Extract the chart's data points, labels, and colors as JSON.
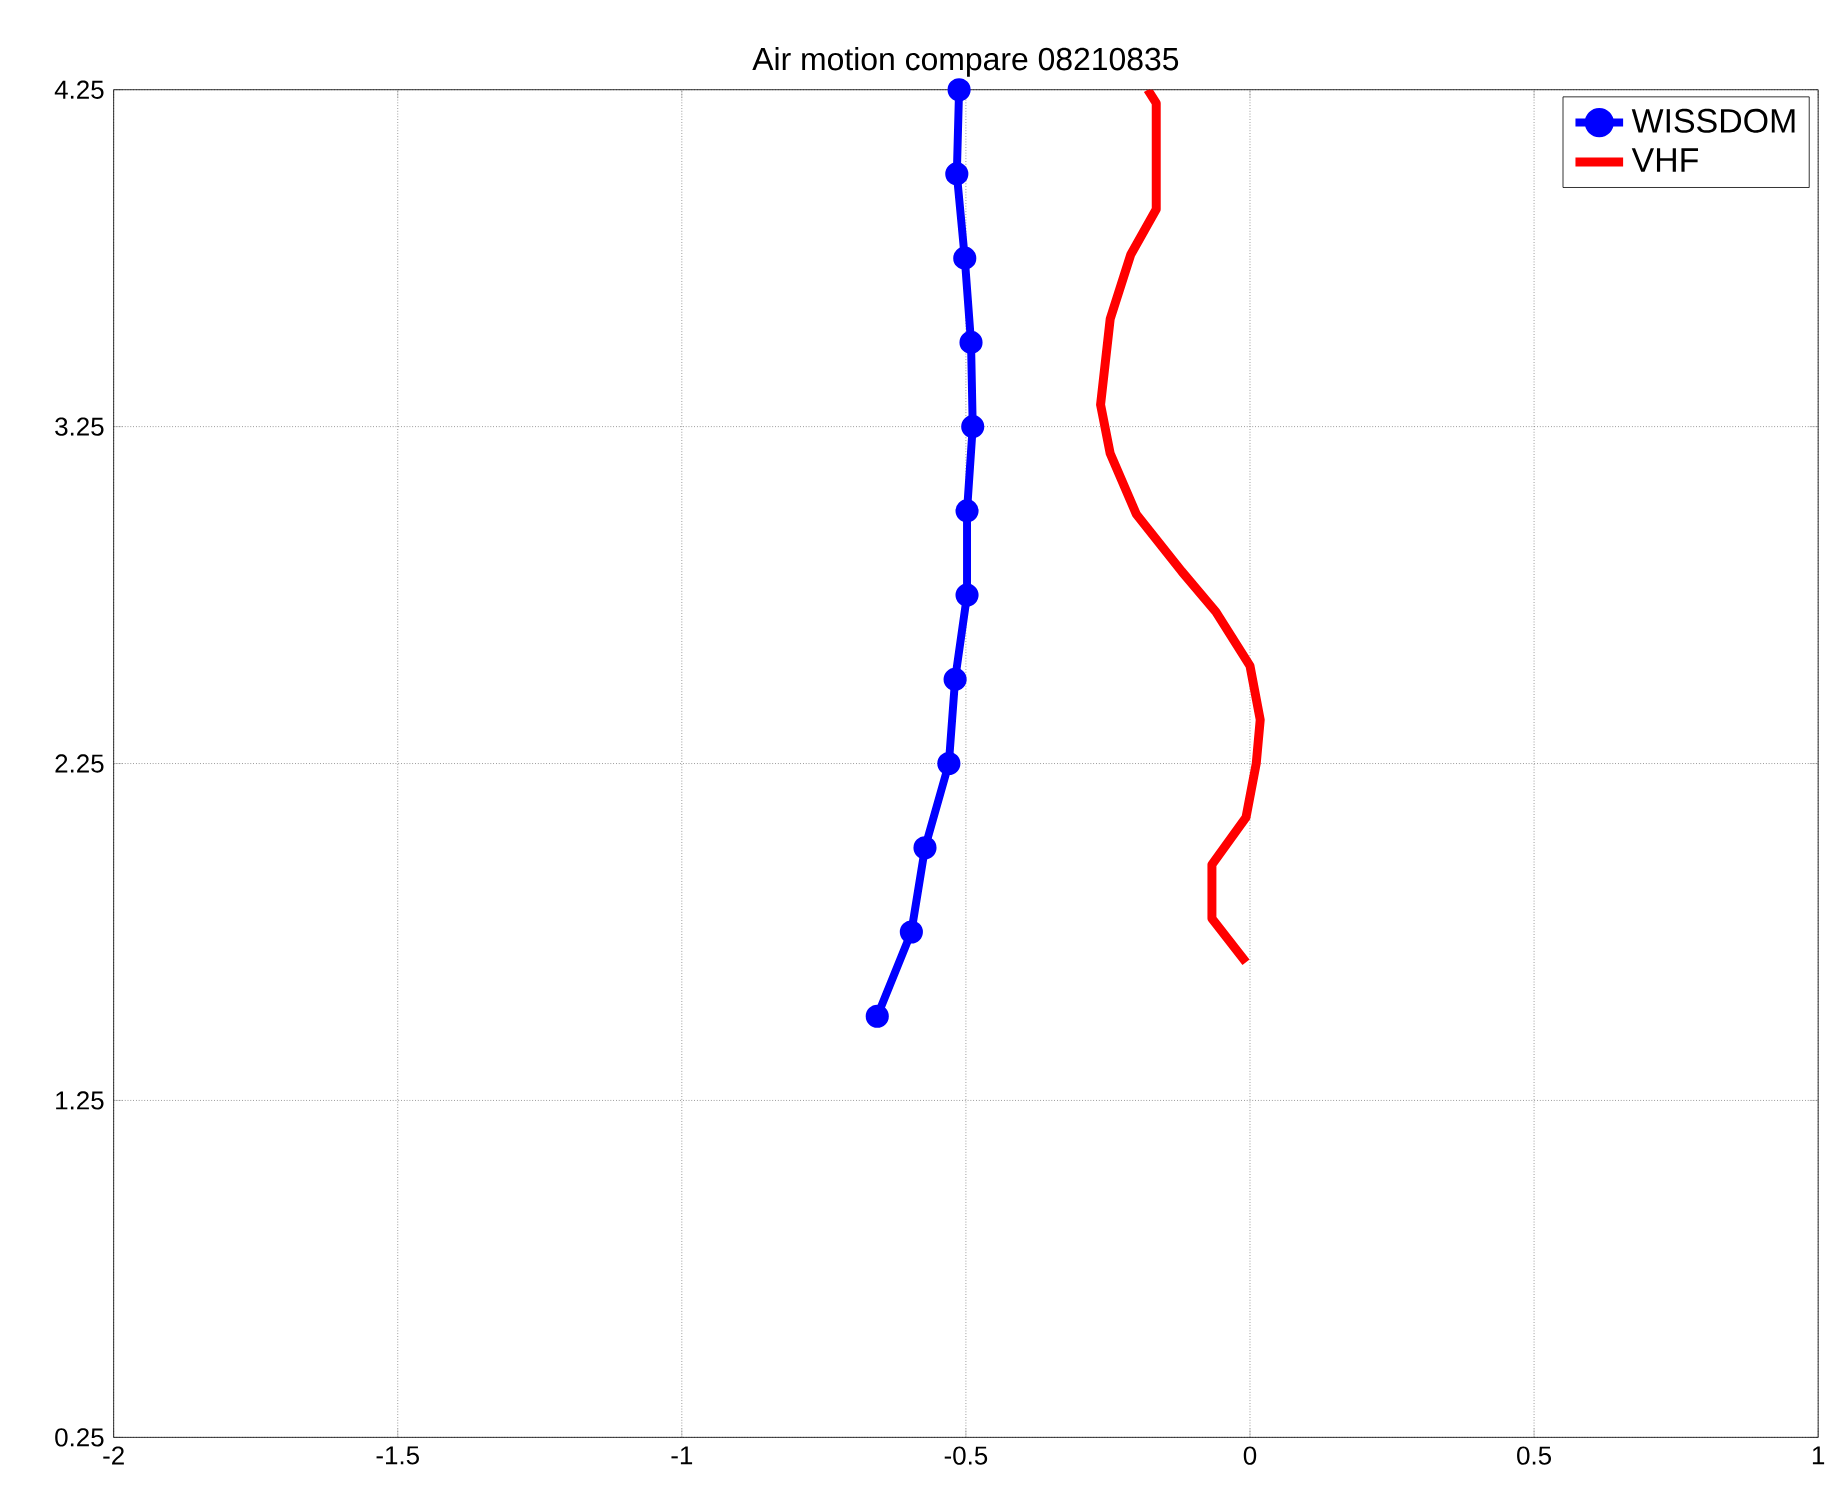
{
  "chart_data": {
    "type": "line",
    "title": "Air motion compare 08210835",
    "xlim": [
      -2,
      1
    ],
    "xticks": [
      -2,
      -1.5,
      -1,
      -0.5,
      0,
      0.5,
      1
    ],
    "ylim": [
      0.25,
      4.25
    ],
    "yticks": [
      0.25,
      1.25,
      2.25,
      3.25,
      4.25
    ],
    "grid": true,
    "legend": "top right",
    "series": [
      {
        "name": "WISSDOM",
        "color": "#0000ff",
        "marker": "circle",
        "x": [
          -0.512,
          -0.516,
          -0.502,
          -0.491,
          -0.488,
          -0.498,
          -0.498,
          -0.519,
          -0.53,
          -0.572,
          -0.596,
          -0.656
        ],
        "values": [
          4.25,
          4.0,
          3.75,
          3.5,
          3.25,
          3.0,
          2.75,
          2.5,
          2.25,
          2.0,
          1.75,
          1.5
        ]
      },
      {
        "name": "VHF",
        "color": "#ff0000",
        "marker": "none",
        "x": [
          -0.18,
          -0.165,
          -0.165,
          -0.21,
          -0.246,
          -0.263,
          -0.246,
          -0.2,
          -0.12,
          -0.06,
          0.0,
          0.018,
          0.011,
          -0.007,
          -0.067,
          -0.067,
          -0.007
        ],
        "values": [
          4.25,
          4.21,
          3.895,
          3.76,
          3.57,
          3.315,
          3.17,
          2.99,
          2.82,
          2.7,
          2.54,
          2.38,
          2.25,
          2.09,
          1.95,
          1.79,
          1.66
        ]
      }
    ]
  }
}
